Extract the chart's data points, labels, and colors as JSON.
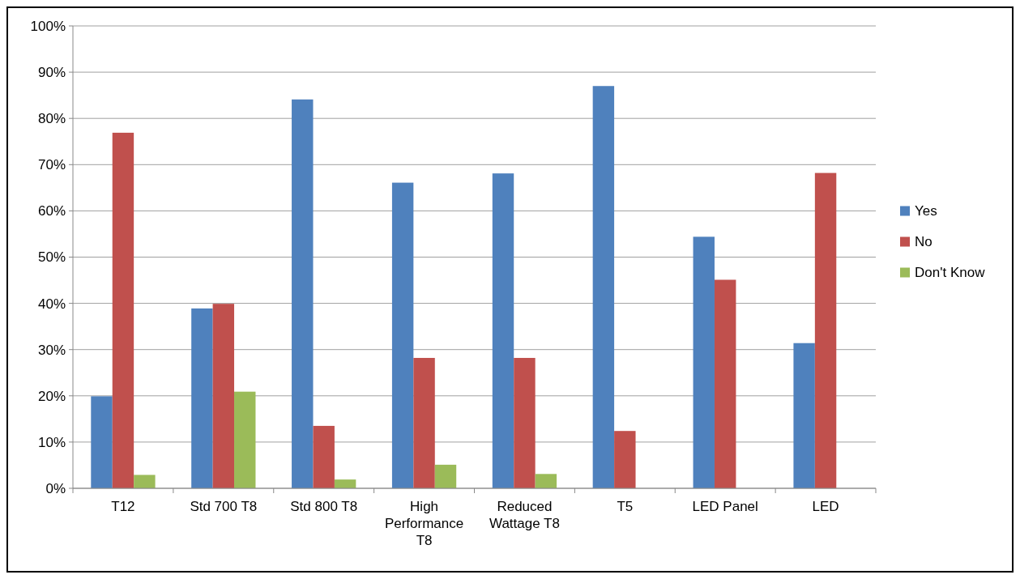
{
  "chart_data": {
    "type": "bar",
    "categories": [
      "T12",
      "Std 700 T8",
      "Std 800 T8",
      "High Performance T8",
      "Reduced Wattage T8",
      "T5",
      "LED Panel",
      "LED"
    ],
    "series": [
      {
        "name": "Yes",
        "color": "#4f81bd",
        "values": [
          19.9,
          38.9,
          84.1,
          66.1,
          68.1,
          87.0,
          54.4,
          31.4
        ]
      },
      {
        "name": "No",
        "color": "#c0504d",
        "values": [
          76.9,
          39.9,
          13.5,
          28.2,
          28.2,
          12.4,
          45.1,
          68.2
        ]
      },
      {
        "name": "Don't Know",
        "color": "#9bbb59",
        "values": [
          2.9,
          20.9,
          1.9,
          5.1,
          3.1,
          null,
          null,
          null
        ]
      }
    ],
    "ylim": [
      0,
      100
    ],
    "yticks": [
      {
        "value": 0,
        "label": "0%"
      },
      {
        "value": 10,
        "label": "10%"
      },
      {
        "value": 20,
        "label": "20%"
      },
      {
        "value": 30,
        "label": "30%"
      },
      {
        "value": 40,
        "label": "40%"
      },
      {
        "value": 50,
        "label": "50%"
      },
      {
        "value": 60,
        "label": "60%"
      },
      {
        "value": 70,
        "label": "70%"
      },
      {
        "value": 80,
        "label": "80%"
      },
      {
        "value": 90,
        "label": "90%"
      },
      {
        "value": 100,
        "label": "100%"
      }
    ],
    "grid": "y",
    "legend": "right"
  }
}
